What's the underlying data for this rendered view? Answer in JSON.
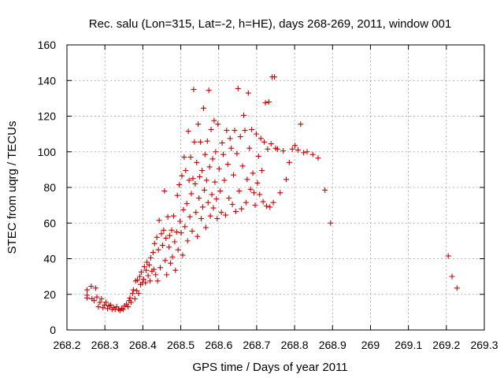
{
  "chart_data": {
    "type": "scatter",
    "title": "Rec. salu (Lon=315, Lat=-2, h=HE), days 268-269, 2011, window 001",
    "xlabel": "GPS time / Days of year 2011",
    "ylabel": "STEC from uqrg / TECUs",
    "xlim": [
      268.2,
      269.3
    ],
    "ylim": [
      0,
      160
    ],
    "xticks": [
      268.2,
      268.3,
      268.4,
      268.5,
      268.6,
      268.7,
      268.8,
      268.9,
      269.0,
      269.1,
      269.2,
      269.3
    ],
    "xtick_labels": [
      "268.2",
      "268.3",
      "268.4",
      "268.5",
      "268.6",
      "268.7",
      "268.8",
      "268.9",
      "269",
      "269.1",
      "269.2",
      "269.3"
    ],
    "yticks": [
      0,
      20,
      40,
      60,
      80,
      100,
      120,
      140,
      160
    ],
    "ytick_labels": [
      "0",
      "20",
      "40",
      "60",
      "80",
      "100",
      "120",
      "140",
      "160"
    ],
    "grid": true,
    "legend": false,
    "marker_color": "#cc0000",
    "points": [
      [
        268.253,
        22.5
      ],
      [
        268.253,
        19.5
      ],
      [
        268.253,
        18.0
      ],
      [
        268.264,
        24.5
      ],
      [
        268.266,
        17.5
      ],
      [
        268.272,
        16.5
      ],
      [
        268.276,
        23.5
      ],
      [
        268.279,
        18.5
      ],
      [
        268.283,
        13.0
      ],
      [
        268.287,
        15.5
      ],
      [
        268.291,
        17.5
      ],
      [
        268.295,
        12.5
      ],
      [
        268.299,
        14.0
      ],
      [
        268.303,
        15.5
      ],
      [
        268.307,
        12.0
      ],
      [
        268.311,
        13.5
      ],
      [
        268.315,
        14.0
      ],
      [
        268.319,
        11.5
      ],
      [
        268.323,
        12.5
      ],
      [
        268.327,
        11.5
      ],
      [
        268.331,
        13.0
      ],
      [
        268.336,
        11.5
      ],
      [
        268.34,
        11.0
      ],
      [
        268.344,
        12.0
      ],
      [
        268.348,
        11.5
      ],
      [
        268.352,
        13.5
      ],
      [
        268.357,
        14.5
      ],
      [
        268.361,
        13.0
      ],
      [
        268.364,
        16.5
      ],
      [
        268.366,
        18.0
      ],
      [
        268.369,
        15.5
      ],
      [
        268.373,
        20.5
      ],
      [
        268.375,
        22.5
      ],
      [
        268.379,
        17.5
      ],
      [
        268.381,
        27.5
      ],
      [
        268.384,
        22.0
      ],
      [
        268.386,
        28.0
      ],
      [
        268.389,
        20.5
      ],
      [
        268.392,
        30.0
      ],
      [
        268.394,
        25.5
      ],
      [
        268.396,
        32.5
      ],
      [
        268.399,
        26.5
      ],
      [
        268.402,
        28.5
      ],
      [
        268.404,
        35.5
      ],
      [
        268.407,
        26.5
      ],
      [
        268.409,
        33.5
      ],
      [
        268.411,
        38.0
      ],
      [
        268.414,
        30.5
      ],
      [
        268.417,
        36.5
      ],
      [
        268.419,
        27.5
      ],
      [
        268.421,
        40.5
      ],
      [
        268.424,
        33.0
      ],
      [
        268.427,
        43.5
      ],
      [
        268.429,
        34.0
      ],
      [
        268.431,
        48.5
      ],
      [
        268.434,
        31.0
      ],
      [
        268.437,
        52.0
      ],
      [
        268.439,
        27.5
      ],
      [
        268.441,
        45.0
      ],
      [
        268.443,
        61.5
      ],
      [
        268.446,
        35.0
      ],
      [
        268.449,
        54.0
      ],
      [
        268.452,
        47.5
      ],
      [
        268.455,
        56.0
      ],
      [
        268.457,
        78.0
      ],
      [
        268.459,
        39.0
      ],
      [
        268.461,
        51.5
      ],
      [
        268.463,
        31.0
      ],
      [
        268.466,
        63.5
      ],
      [
        268.469,
        46.5
      ],
      [
        268.471,
        53.0
      ],
      [
        268.473,
        37.5
      ],
      [
        268.476,
        56.0
      ],
      [
        268.478,
        41.0
      ],
      [
        268.481,
        64.0
      ],
      [
        268.484,
        49.5
      ],
      [
        268.486,
        33.5
      ],
      [
        268.489,
        55.0
      ],
      [
        268.491,
        75.5
      ],
      [
        268.493,
        45.0
      ],
      [
        268.496,
        81.5
      ],
      [
        268.498,
        61.0
      ],
      [
        268.501,
        54.5
      ],
      [
        268.503,
        86.5
      ],
      [
        268.505,
        42.0
      ],
      [
        268.507,
        67.5
      ],
      [
        268.509,
        97.0
      ],
      [
        268.511,
        58.0
      ],
      [
        268.513,
        89.5
      ],
      [
        268.516,
        71.0
      ],
      [
        268.518,
        50.0
      ],
      [
        268.52,
        111.5
      ],
      [
        268.522,
        84.0
      ],
      [
        268.524,
        63.5
      ],
      [
        268.526,
        97.0
      ],
      [
        268.528,
        76.5
      ],
      [
        268.53,
        55.5
      ],
      [
        268.532,
        85.0
      ],
      [
        268.534,
        135.0
      ],
      [
        268.536,
        105.5
      ],
      [
        268.538,
        82.0
      ],
      [
        268.54,
        66.0
      ],
      [
        268.542,
        94.0
      ],
      [
        268.544,
        52.5
      ],
      [
        268.546,
        115.5
      ],
      [
        268.548,
        74.0
      ],
      [
        268.55,
        86.0
      ],
      [
        268.552,
        105.5
      ],
      [
        268.554,
        62.5
      ],
      [
        268.556,
        89.5
      ],
      [
        268.558,
        69.0
      ],
      [
        268.56,
        124.5
      ],
      [
        268.562,
        78.5
      ],
      [
        268.564,
        98.5
      ],
      [
        268.566,
        57.5
      ],
      [
        268.568,
        84.0
      ],
      [
        268.57,
        106.0
      ],
      [
        268.572,
        71.5
      ],
      [
        268.574,
        134.5
      ],
      [
        268.576,
        91.5
      ],
      [
        268.578,
        64.0
      ],
      [
        268.58,
        112.5
      ],
      [
        268.582,
        76.0
      ],
      [
        268.584,
        96.0
      ],
      [
        268.586,
        68.5
      ],
      [
        268.588,
        117.5
      ],
      [
        268.59,
        83.0
      ],
      [
        268.592,
        100.0
      ],
      [
        268.594,
        73.5
      ],
      [
        268.596,
        62.5
      ],
      [
        268.598,
        115.5
      ],
      [
        268.601,
        90.5
      ],
      [
        268.604,
        78.0
      ],
      [
        268.607,
        66.0
      ],
      [
        268.609,
        105.0
      ],
      [
        268.612,
        98.5
      ],
      [
        268.615,
        84.0
      ],
      [
        268.618,
        64.5
      ],
      [
        268.621,
        112.0
      ],
      [
        268.624,
        93.0
      ],
      [
        268.627,
        74.0
      ],
      [
        268.63,
        107.5
      ],
      [
        268.633,
        102.0
      ],
      [
        268.636,
        70.5
      ],
      [
        268.639,
        87.0
      ],
      [
        268.642,
        112.0
      ],
      [
        268.645,
        66.5
      ],
      [
        268.648,
        99.0
      ],
      [
        268.651,
        135.5
      ],
      [
        268.654,
        78.0
      ],
      [
        268.657,
        108.5
      ],
      [
        268.66,
        68.0
      ],
      [
        268.663,
        92.0
      ],
      [
        268.666,
        120.5
      ],
      [
        268.669,
        112.0
      ],
      [
        268.672,
        71.5
      ],
      [
        268.675,
        84.5
      ],
      [
        268.678,
        133.0
      ],
      [
        268.681,
        102.0
      ],
      [
        268.684,
        79.0
      ],
      [
        268.687,
        112.5
      ],
      [
        268.69,
        88.0
      ],
      [
        268.693,
        77.0
      ],
      [
        268.696,
        70.0
      ],
      [
        268.699,
        110.0
      ],
      [
        268.702,
        82.5
      ],
      [
        268.705,
        97.5
      ],
      [
        268.708,
        76.0
      ],
      [
        268.711,
        107.5
      ],
      [
        268.714,
        89.5
      ],
      [
        268.717,
        72.0
      ],
      [
        268.72,
        105.5
      ],
      [
        268.723,
        127.5
      ],
      [
        268.726,
        69.5
      ],
      [
        268.729,
        101.5
      ],
      [
        268.732,
        128.0
      ],
      [
        268.735,
        69.0
      ],
      [
        268.738,
        104.5
      ],
      [
        268.741,
        142.0
      ],
      [
        268.744,
        71.5
      ],
      [
        268.747,
        142.0
      ],
      [
        268.75,
        102.0
      ],
      [
        268.755,
        101.5
      ],
      [
        268.762,
        77.0
      ],
      [
        268.77,
        100.5
      ],
      [
        268.778,
        84.5
      ],
      [
        268.786,
        94.0
      ],
      [
        268.794,
        101.5
      ],
      [
        268.801,
        103.5
      ],
      [
        268.809,
        101.0
      ],
      [
        268.816,
        115.5
      ],
      [
        268.824,
        99.5
      ],
      [
        268.833,
        100.0
      ],
      [
        268.848,
        98.5
      ],
      [
        268.862,
        96.5
      ],
      [
        268.88,
        78.5
      ],
      [
        268.895,
        60.0
      ],
      [
        269.205,
        41.5
      ],
      [
        269.215,
        30.0
      ],
      [
        269.228,
        23.5
      ]
    ]
  }
}
